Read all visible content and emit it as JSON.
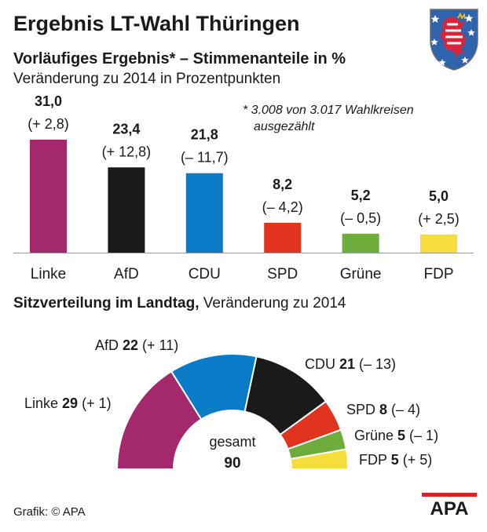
{
  "header": {
    "title": "Ergebnis LT-Wahl Thüringen",
    "subtitle": "Vorläufiges Ergebnis* – Stimmenanteile in %",
    "subsubtitle": "Veränderung zu 2014 in Prozentpunkten",
    "footnote_line1": "* 3.008 von 3.017 Wahlkreisen",
    "footnote_line2": "ausgezählt"
  },
  "seats": {
    "heading_bold": "Sitzverteilung im Landtag,",
    "heading_rest": " Veränderung zu 2014",
    "total_label": "gesamt",
    "total_value": "90"
  },
  "footer": {
    "credit": "Grafik: © APA",
    "logo_text": "APA"
  },
  "chart_data": [
    {
      "type": "bar",
      "categories": [
        "Linke",
        "AfD",
        "CDU",
        "SPD",
        "Grüne",
        "FDP"
      ],
      "values": [
        31.0,
        23.4,
        21.8,
        8.2,
        5.2,
        5.0
      ],
      "value_labels": [
        "31,0",
        "23,4",
        "21,8",
        "8,2",
        "5,2",
        "5,0"
      ],
      "change_labels": [
        "(+ 2,8)",
        "(+ 12,8)",
        "(– 11,7)",
        "(– 4,2)",
        "(– 0,5)",
        "(+ 2,5)"
      ],
      "changes": [
        2.8,
        12.8,
        -11.7,
        -4.2,
        -0.5,
        2.5
      ],
      "colors": [
        "#a3286c",
        "#1a1a1a",
        "#0a7bc6",
        "#e0341e",
        "#6ead3c",
        "#f5de3c"
      ],
      "ylim": [
        0,
        31
      ]
    },
    {
      "type": "pie",
      "categories": [
        "Linke",
        "AfD",
        "CDU",
        "SPD",
        "Grüne",
        "FDP"
      ],
      "values": [
        29,
        22,
        21,
        8,
        5,
        5
      ],
      "value_labels": [
        "29",
        "22",
        "21",
        "8",
        "5",
        "5"
      ],
      "change_labels": [
        "(+ 1)",
        "(+ 11)",
        "(– 13)",
        "(– 4)",
        "(– 1)",
        "(+ 5)"
      ],
      "colors": [
        "#a3286c",
        "#0a7bc6",
        "#1a1a1a",
        "#e0341e",
        "#6ead3c",
        "#f5de3c"
      ],
      "total": 90
    }
  ]
}
